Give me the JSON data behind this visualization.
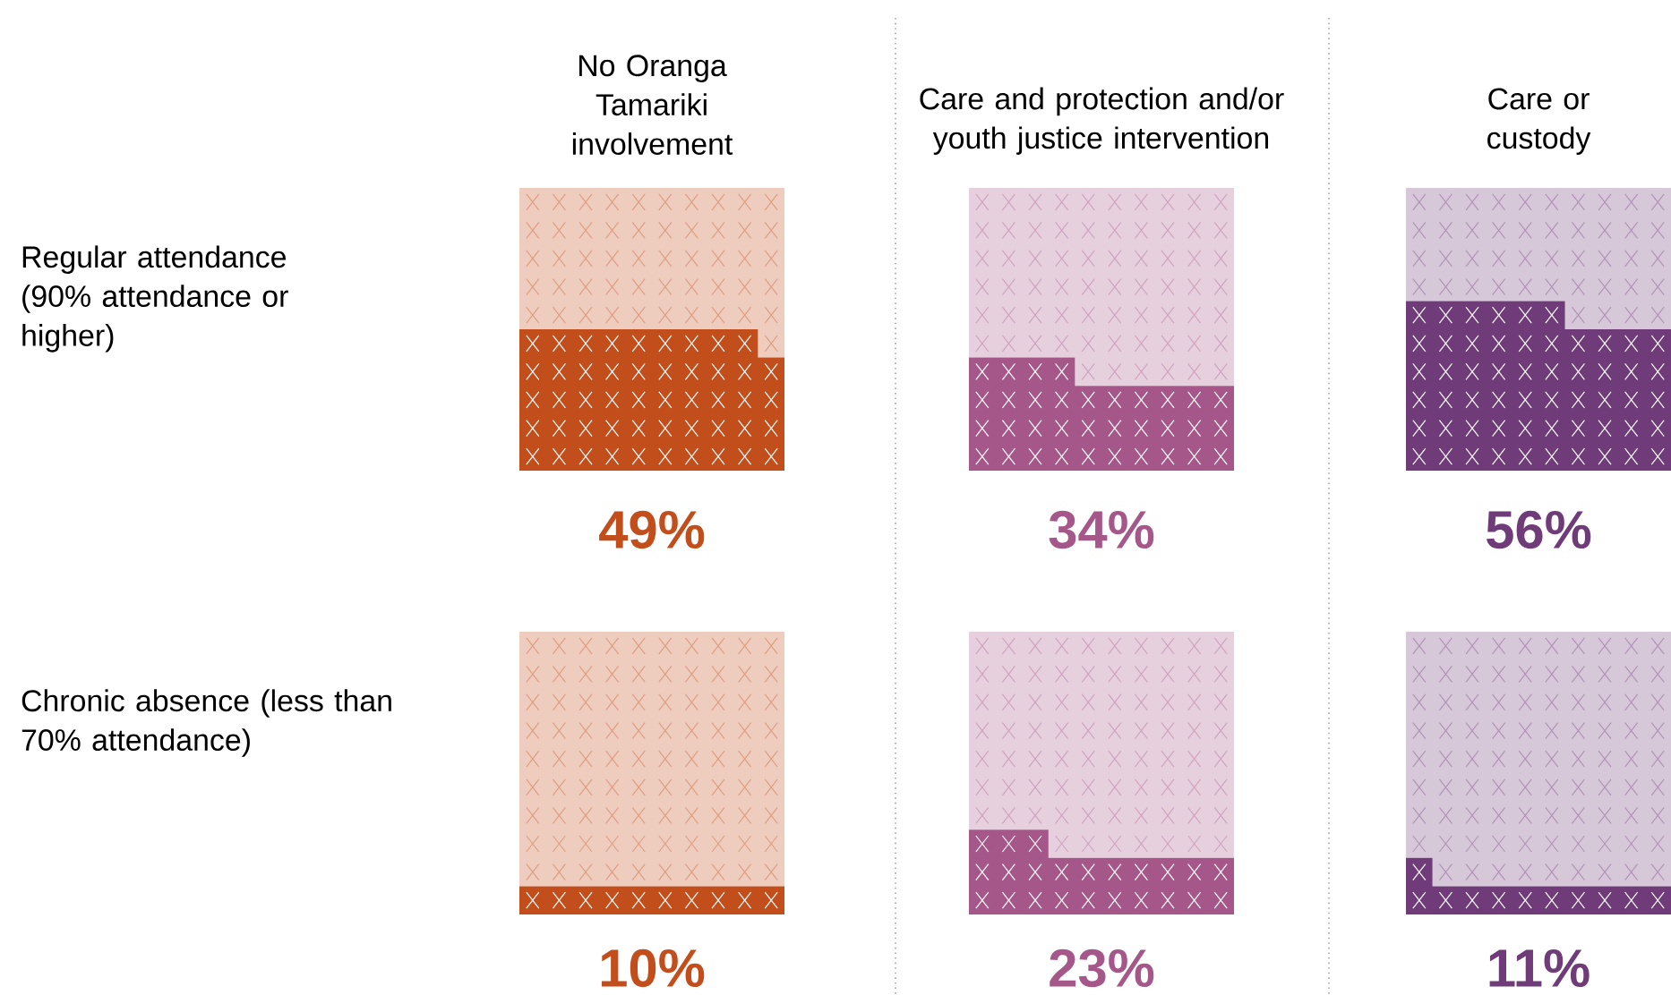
{
  "chart_data": {
    "type": "other",
    "categories": [
      "No Oranga Tamariki involvement",
      "Care and protection and/or youth justice intervention",
      "Care or custody"
    ],
    "colors": [
      "#c24e1c",
      "#a6578a",
      "#6f3b78"
    ],
    "series": [
      {
        "name": "Regular attendance (90% attendance or higher)",
        "values": [
          49,
          34,
          56
        ],
        "value_labels": [
          "49%",
          "34%",
          "56%"
        ]
      },
      {
        "name": "Chronic absence (less than 70% attendance)",
        "values": [
          10,
          23,
          11
        ],
        "value_labels": [
          "10%",
          "23%",
          "11%"
        ]
      }
    ]
  }
}
